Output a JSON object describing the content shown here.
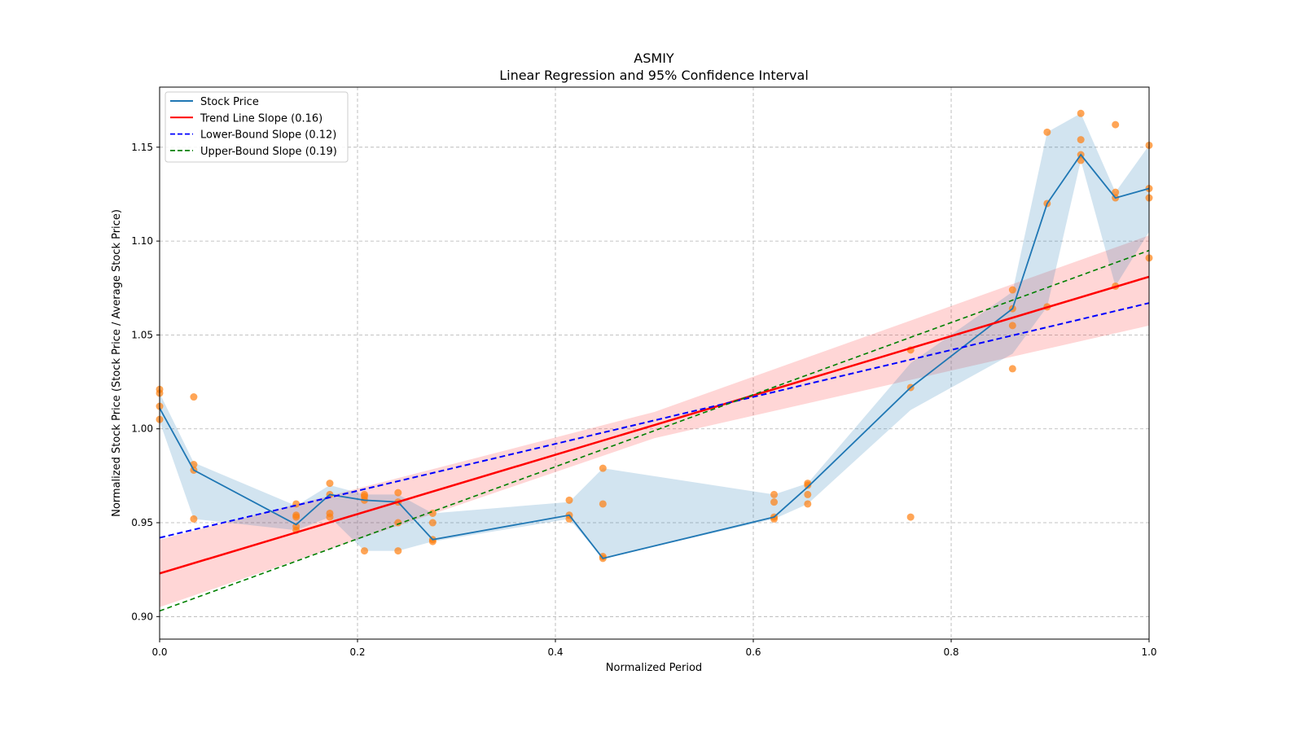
{
  "chart_data": {
    "type": "line",
    "title": "ASMIY",
    "subtitle": "Linear Regression and 95% Confidence Interval",
    "xlabel": "Normalized Period",
    "ylabel": "Normalized Stock Price (Stock Price / Average Stock Price)",
    "xlim": [
      0,
      1.0
    ],
    "ylim": [
      0.888,
      1.182
    ],
    "xticks": [
      "0.0",
      "0.2",
      "0.4",
      "0.6",
      "0.8",
      "1.0"
    ],
    "xtick_values": [
      0,
      0.2,
      0.4,
      0.6,
      0.8,
      1.0
    ],
    "yticks": [
      "0.90",
      "0.95",
      "1.00",
      "1.05",
      "1.10",
      "1.15"
    ],
    "ytick_values": [
      0.9,
      0.95,
      1.0,
      1.05,
      1.1,
      1.15
    ],
    "grid": true,
    "legend_position": "top-left",
    "legend": [
      {
        "label": "Stock Price",
        "color": "#1f77b4",
        "style": "solid"
      },
      {
        "label": "Trend Line Slope (0.16)",
        "color": "#ff0000",
        "style": "solid"
      },
      {
        "label": "Lower-Bound Slope (0.12)",
        "color": "#0000ff",
        "style": "dashed"
      },
      {
        "label": "Upper-Bound Slope (0.19)",
        "color": "#008000",
        "style": "dashed"
      }
    ],
    "stock_price": {
      "x": [
        0,
        0.0345,
        0.138,
        0.172,
        0.207,
        0.241,
        0.276,
        0.414,
        0.448,
        0.621,
        0.655,
        0.759,
        0.862,
        0.897,
        0.931,
        0.966,
        1.0
      ],
      "y": [
        1.011,
        0.978,
        0.949,
        0.965,
        0.962,
        0.961,
        0.941,
        0.954,
        0.931,
        0.953,
        0.969,
        1.022,
        1.064,
        1.12,
        1.146,
        1.123,
        1.128
      ],
      "band_lower": [
        1.004,
        0.952,
        0.946,
        0.953,
        0.935,
        0.935,
        0.94,
        0.952,
        0.931,
        0.952,
        0.96,
        1.01,
        1.04,
        1.065,
        1.143,
        1.076,
        1.105
      ],
      "band_upper": [
        1.019,
        0.982,
        0.959,
        0.97,
        0.965,
        0.965,
        0.955,
        0.961,
        0.979,
        0.965,
        0.971,
        1.035,
        1.073,
        1.158,
        1.168,
        1.126,
        1.151
      ]
    },
    "scatter": [
      [
        0,
        1.021
      ],
      [
        0,
        1.019
      ],
      [
        0,
        1.012
      ],
      [
        0,
        1.005
      ],
      [
        0.0345,
        1.017
      ],
      [
        0.0345,
        0.981
      ],
      [
        0.0345,
        0.978
      ],
      [
        0.0345,
        0.952
      ],
      [
        0.138,
        0.96
      ],
      [
        0.138,
        0.954
      ],
      [
        0.138,
        0.953
      ],
      [
        0.138,
        0.948
      ],
      [
        0.138,
        0.946
      ],
      [
        0.172,
        0.971
      ],
      [
        0.172,
        0.965
      ],
      [
        0.172,
        0.955
      ],
      [
        0.172,
        0.953
      ],
      [
        0.207,
        0.965
      ],
      [
        0.207,
        0.964
      ],
      [
        0.207,
        0.962
      ],
      [
        0.207,
        0.935
      ],
      [
        0.241,
        0.966
      ],
      [
        0.241,
        0.961
      ],
      [
        0.241,
        0.95
      ],
      [
        0.241,
        0.935
      ],
      [
        0.276,
        0.955
      ],
      [
        0.276,
        0.95
      ],
      [
        0.276,
        0.941
      ],
      [
        0.276,
        0.94
      ],
      [
        0.414,
        0.962
      ],
      [
        0.414,
        0.954
      ],
      [
        0.414,
        0.952
      ],
      [
        0.448,
        0.979
      ],
      [
        0.448,
        0.96
      ],
      [
        0.448,
        0.932
      ],
      [
        0.448,
        0.931
      ],
      [
        0.621,
        0.965
      ],
      [
        0.621,
        0.961
      ],
      [
        0.621,
        0.953
      ],
      [
        0.621,
        0.952
      ],
      [
        0.655,
        0.971
      ],
      [
        0.655,
        0.97
      ],
      [
        0.655,
        0.965
      ],
      [
        0.655,
        0.96
      ],
      [
        0.759,
        1.042
      ],
      [
        0.759,
        1.022
      ],
      [
        0.759,
        0.953
      ],
      [
        0.862,
        1.074
      ],
      [
        0.862,
        1.064
      ],
      [
        0.862,
        1.055
      ],
      [
        0.862,
        1.032
      ],
      [
        0.897,
        1.158
      ],
      [
        0.897,
        1.12
      ],
      [
        0.897,
        1.065
      ],
      [
        0.931,
        1.168
      ],
      [
        0.931,
        1.154
      ],
      [
        0.931,
        1.146
      ],
      [
        0.931,
        1.143
      ],
      [
        0.966,
        1.162
      ],
      [
        0.966,
        1.126
      ],
      [
        0.966,
        1.123
      ],
      [
        0.966,
        1.076
      ],
      [
        1.0,
        1.151
      ],
      [
        1.0,
        1.128
      ],
      [
        1.0,
        1.123
      ],
      [
        1.0,
        1.091
      ]
    ],
    "trend_line": {
      "x": [
        0,
        1
      ],
      "y": [
        0.923,
        1.081
      ]
    },
    "trend_ci": {
      "x": [
        0,
        0.5,
        1
      ],
      "lower": [
        0.905,
        0.995,
        1.055
      ],
      "upper": [
        0.941,
        1.009,
        1.103
      ]
    },
    "lower_bound_line": {
      "x": [
        0,
        1
      ],
      "y": [
        0.942,
        1.067
      ]
    },
    "upper_bound_line": {
      "x": [
        0,
        1
      ],
      "y": [
        0.903,
        1.095
      ]
    },
    "colors": {
      "scatter": "#ff7f0e",
      "band": "#1f77b4",
      "trend_ci": "#ff0000"
    }
  }
}
